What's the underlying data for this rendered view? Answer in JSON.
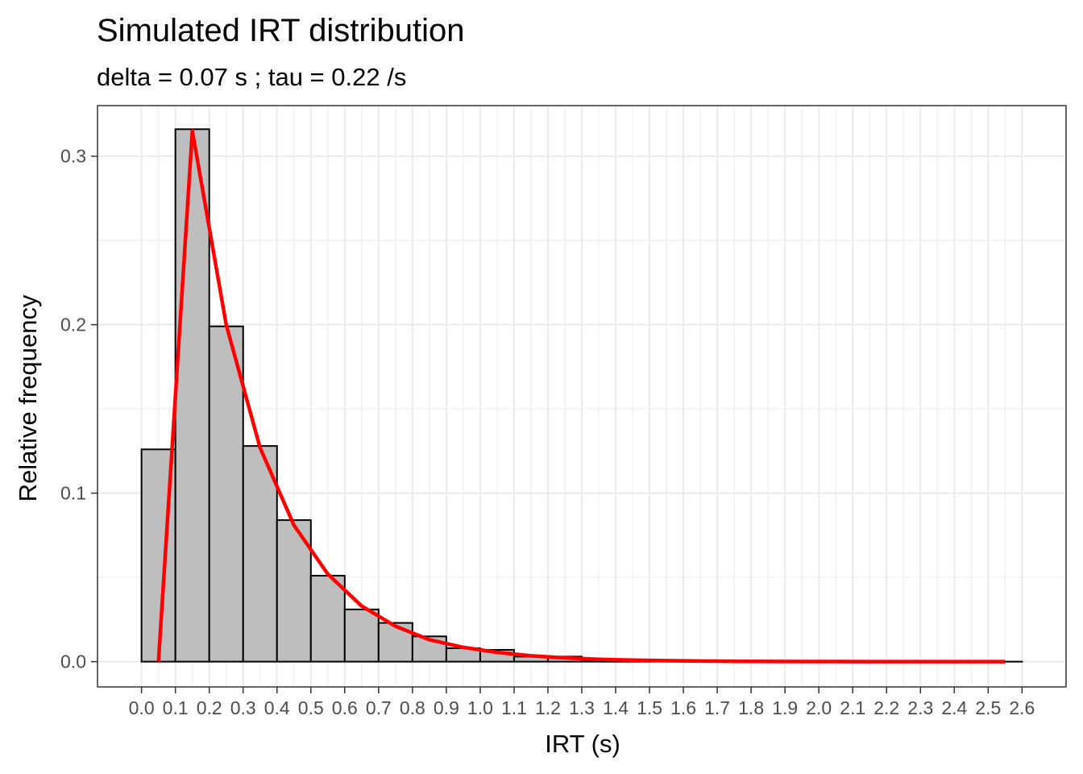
{
  "chart_data": {
    "type": "bar",
    "title": "Simulated IRT distribution",
    "subtitle": "delta = 0.07 s ; tau =  0.22 /s",
    "xlabel": "IRT (s)",
    "ylabel": "Relative frequency",
    "xlim": [
      -0.13,
      2.73
    ],
    "ylim": [
      -0.015,
      0.33
    ],
    "x_ticks": [
      "0.0",
      "0.1",
      "0.2",
      "0.3",
      "0.4",
      "0.5",
      "0.6",
      "0.7",
      "0.8",
      "0.9",
      "1.0",
      "1.1",
      "1.2",
      "1.3",
      "1.4",
      "1.5",
      "1.6",
      "1.7",
      "1.8",
      "1.9",
      "2.0",
      "2.1",
      "2.2",
      "2.3",
      "2.4",
      "2.5",
      "2.6"
    ],
    "x_tick_values": [
      0.0,
      0.1,
      0.2,
      0.3,
      0.4,
      0.5,
      0.6,
      0.7,
      0.8,
      0.9,
      1.0,
      1.1,
      1.2,
      1.3,
      1.4,
      1.5,
      1.6,
      1.7,
      1.8,
      1.9,
      2.0,
      2.1,
      2.2,
      2.3,
      2.4,
      2.5,
      2.6
    ],
    "y_ticks": [
      "0.0",
      "0.1",
      "0.2",
      "0.3"
    ],
    "y_tick_values": [
      0.0,
      0.1,
      0.2,
      0.3
    ],
    "grid": true,
    "bin_width": 0.1,
    "bins": {
      "x_start": [
        0.0,
        0.1,
        0.2,
        0.3,
        0.4,
        0.5,
        0.6,
        0.7,
        0.8,
        0.9,
        1.0,
        1.1,
        1.2,
        1.3,
        1.4,
        1.5,
        1.6,
        1.7,
        1.8,
        1.9,
        2.0,
        2.1,
        2.2,
        2.3,
        2.4,
        2.5
      ],
      "values": [
        0.126,
        0.316,
        0.199,
        0.128,
        0.084,
        0.051,
        0.031,
        0.023,
        0.015,
        0.008,
        0.007,
        0.003,
        0.003,
        0.001,
        0.001,
        0.001,
        0.0005,
        0.0003,
        0.0002,
        0.0001,
        0.0001,
        0.0001,
        0.0,
        0.0,
        0.0,
        0.0
      ]
    },
    "bar_fill": "#bebebe",
    "bar_stroke": "#000000",
    "series": [
      {
        "color": "#ff0000",
        "x": [
          0.05,
          0.15,
          0.25,
          0.35,
          0.45,
          0.55,
          0.65,
          0.75,
          0.85,
          0.95,
          1.05,
          1.15,
          1.25,
          1.35,
          1.45,
          1.55,
          1.65,
          1.75,
          1.85,
          1.95,
          2.05,
          2.15,
          2.25,
          2.35,
          2.45,
          2.55
        ],
        "values": [
          0.0,
          0.315,
          0.2,
          0.127,
          0.081,
          0.052,
          0.033,
          0.021,
          0.013,
          0.0085,
          0.0055,
          0.0035,
          0.0022,
          0.0014,
          0.0009,
          0.0006,
          0.0004,
          0.0002,
          0.00015,
          0.0001,
          6e-05,
          4e-05,
          2e-05,
          1e-05,
          1e-05,
          0.0
        ]
      }
    ]
  }
}
